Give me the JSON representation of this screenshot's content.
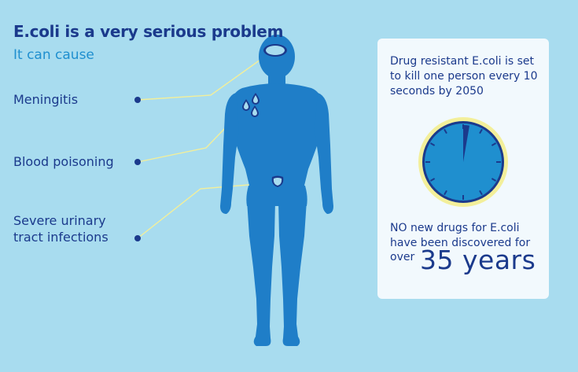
{
  "header": {
    "title": "E.coli is a very serious problem",
    "subtitle": "It can cause"
  },
  "conditions": [
    {
      "line1": "Meningitis",
      "line2": ""
    },
    {
      "line1": "Blood poisoning",
      "line2": ""
    },
    {
      "line1": "Severe urinary",
      "line2": "tract infections"
    }
  ],
  "card": {
    "stat_text": "Drug resistant E.coli is set to kill one person every 10 seconds by 2050",
    "drugs_text": "NO new drugs for E.coli have been discovered for",
    "over_label": "over",
    "years_label": "35 years"
  },
  "colors": {
    "background": "#a8dcef",
    "figure": "#1f7ec8",
    "navy": "#1b3a8c",
    "accent": "#1f8fcf",
    "callout_line": "#f3ef9a"
  },
  "icons": [
    "human-figure-icon",
    "brain-icon",
    "blood-drops-icon",
    "bladder-icon",
    "clock-icon"
  ]
}
